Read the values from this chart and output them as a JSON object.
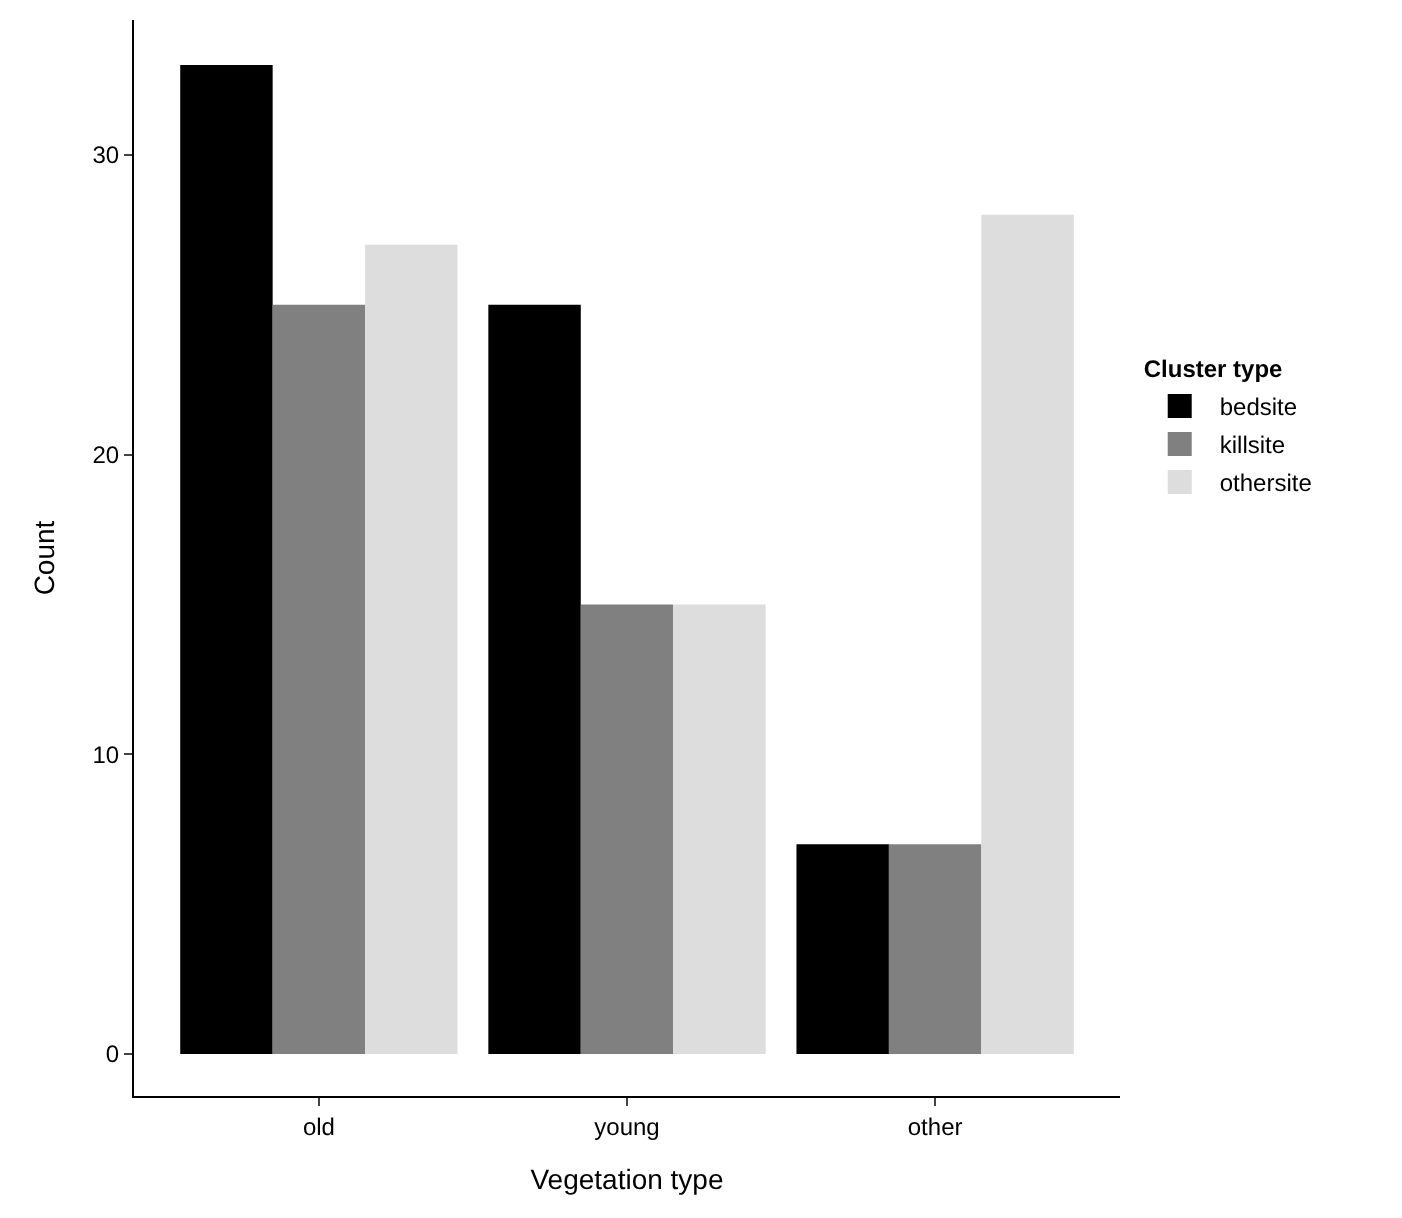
{
  "chart_data": {
    "type": "bar",
    "xlabel": "Vegetation type",
    "ylabel": "Count",
    "legend_title": "Cluster type",
    "categories": [
      "old",
      "young",
      "other"
    ],
    "series": [
      {
        "name": "bedsite",
        "color": "#000000",
        "values": [
          33,
          25,
          7
        ]
      },
      {
        "name": "killsite",
        "color": "#808080",
        "values": [
          25,
          15,
          7
        ]
      },
      {
        "name": "othersite",
        "color": "#dddddd",
        "values": [
          27,
          15,
          28
        ]
      }
    ],
    "ylim": [
      -1.4,
      34.5
    ],
    "yticks": [
      0,
      10,
      20,
      30
    ],
    "legend": "right"
  }
}
